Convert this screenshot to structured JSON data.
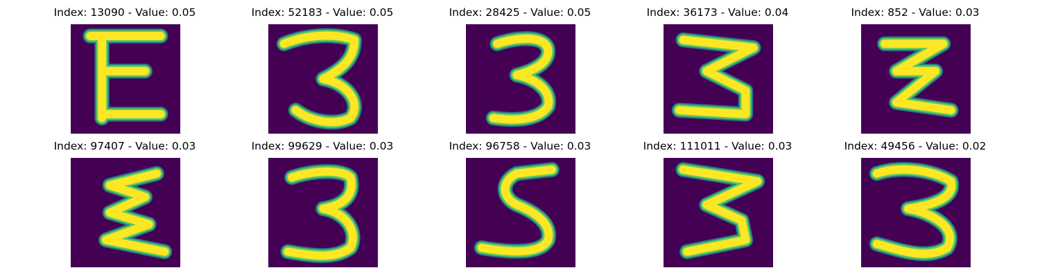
{
  "colors": {
    "background": "#440154",
    "stroke_outer": "#21918c",
    "stroke_mid": "#5ec962",
    "stroke_core": "#fde725"
  },
  "samples": [
    {
      "index": "13090",
      "value": "0.05",
      "digit": "E"
    },
    {
      "index": "52183",
      "value": "0.05",
      "digit": "3"
    },
    {
      "index": "28425",
      "value": "0.05",
      "digit": "3"
    },
    {
      "index": "36173",
      "value": "0.04",
      "digit": "3"
    },
    {
      "index": "852",
      "value": "0.03",
      "digit": "Z"
    },
    {
      "index": "97407",
      "value": "0.03",
      "digit": "E"
    },
    {
      "index": "99629",
      "value": "0.03",
      "digit": "3"
    },
    {
      "index": "96758",
      "value": "0.03",
      "digit": "5"
    },
    {
      "index": "111011",
      "value": "0.03",
      "digit": "3"
    },
    {
      "index": "49456",
      "value": "0.02",
      "digit": "3"
    }
  ]
}
